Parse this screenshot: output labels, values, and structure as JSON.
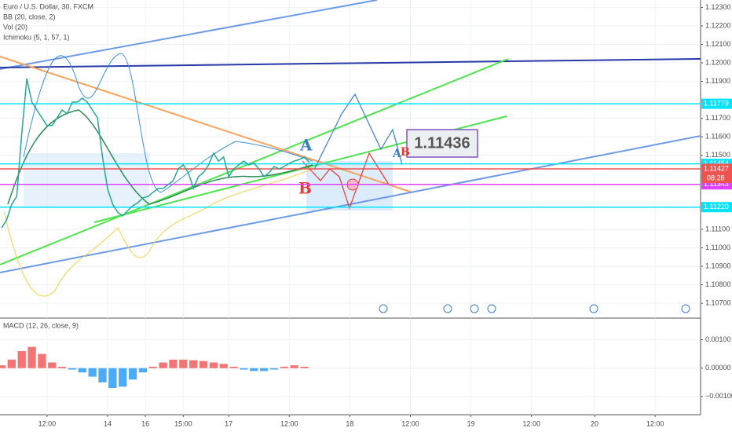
{
  "chart_data": {
    "type": "line",
    "title": "Euro / U.S. Dollar, 30, FXCM",
    "indicators": [
      "BB (20, close, 2)",
      "Vol (20)",
      "Ichimoku (5, 1, 57, 1)"
    ],
    "grid": true,
    "x": [
      0,
      2,
      4,
      6,
      8,
      10,
      12,
      14,
      16,
      18,
      20,
      22,
      24,
      26,
      28,
      30,
      32,
      34,
      36,
      38,
      40,
      42,
      44,
      46,
      48,
      50,
      52,
      54,
      56,
      58,
      60,
      62,
      64,
      66,
      68,
      70,
      72,
      74,
      76,
      78,
      80,
      82,
      84,
      86,
      88,
      90,
      92,
      94,
      96,
      98,
      100,
      102,
      104,
      106,
      108,
      110,
      112,
      114,
      116,
      118,
      120,
      122
    ],
    "series": [
      {
        "color": "#26a69a",
        "values": [
          1.11108,
          1.11151,
          1.11236,
          1.11278,
          1.11618,
          1.11915,
          1.11788,
          1.11745,
          1.11703,
          1.11661,
          1.11661,
          1.11703,
          1.11745,
          1.11724,
          1.11788,
          1.11788,
          1.11809,
          1.11788,
          1.11745,
          1.11703,
          1.11491,
          1.11321,
          1.11236,
          1.11193,
          1.11172,
          1.11202,
          1.11227,
          1.11244,
          1.1127,
          1.11278,
          1.113,
          1.11321,
          1.11321,
          1.11342,
          1.11363,
          1.11427,
          1.11448,
          1.11406,
          1.11321,
          1.11385,
          1.11406,
          1.11448,
          1.11512,
          1.11469,
          1.11491,
          1.11385,
          1.11427,
          1.11448,
          1.11469,
          1.11448,
          1.11457,
          1.11427,
          1.11385,
          1.11406,
          1.1144,
          1.11427,
          1.1144,
          1.11457,
          1.11469,
          1.11478,
          1.11491,
          1.11461
        ]
      }
    ],
    "xlim": [
      0,
      277
    ],
    "xticks": [
      {
        "value": 18,
        "label": "12:00"
      },
      {
        "value": 42,
        "label": "14"
      },
      {
        "value": 57,
        "label": "16"
      },
      {
        "value": 72,
        "label": "15:00"
      },
      {
        "value": 90,
        "label": "17"
      },
      {
        "value": 114,
        "label": "12:00"
      },
      {
        "value": 138,
        "label": "18"
      },
      {
        "value": 162,
        "label": "12:00"
      },
      {
        "value": 186,
        "label": "19"
      },
      {
        "value": 210,
        "label": "12:00"
      },
      {
        "value": 235,
        "label": "20"
      },
      {
        "value": 259,
        "label": "12:00"
      }
    ],
    "ylim": [
      1.1062,
      1.1234
    ],
    "yticks": [
      {
        "value": 1.123,
        "label": "1.12300"
      },
      {
        "value": 1.122,
        "label": "1.12200"
      },
      {
        "value": 1.121,
        "label": "1.12100"
      },
      {
        "value": 1.12,
        "label": "1.12000"
      },
      {
        "value": 1.119,
        "label": "1.11900"
      },
      {
        "value": 1.117,
        "label": "1.11700"
      },
      {
        "value": 1.116,
        "label": "1.11600"
      },
      {
        "value": 1.115,
        "label": "1.11500"
      },
      {
        "value": 1.111,
        "label": "1.11100"
      },
      {
        "value": 1.11,
        "label": "1.11000"
      },
      {
        "value": 1.109,
        "label": "1.10900"
      },
      {
        "value": 1.108,
        "label": "1.10800"
      },
      {
        "value": 1.107,
        "label": "1.10700"
      }
    ],
    "price_lines": [
      {
        "value": 1.11779,
        "label": "1.11779",
        "color": "#00e5ff"
      },
      {
        "value": 1.11454,
        "label": "1.11454",
        "color": "#00e5ff"
      },
      {
        "value": 1.11427,
        "label": "1.11427",
        "color": "#ef5350"
      },
      {
        "value": 1.11343,
        "label": "1.11343",
        "color": "#e040fb"
      },
      {
        "value": 1.1122,
        "label": "1.11220",
        "color": "#00e5ff"
      }
    ],
    "countdown": "08:28",
    "annotations": {
      "a_big": "A",
      "b_big": "B",
      "a_small": "A",
      "b_small": "B",
      "price_box": "1.11436"
    },
    "macd": {
      "title": "MACD (12, 26, close, 9)",
      "x": [
        0,
        4,
        8,
        12,
        16,
        20,
        24,
        28,
        32,
        36,
        40,
        44,
        48,
        52,
        56,
        60,
        64,
        68,
        72,
        76,
        80,
        84,
        88,
        92,
        96,
        100,
        104,
        108,
        112,
        116,
        120
      ],
      "values": [
        0.0001,
        0.0003,
        0.0006,
        0.00075,
        0.0005,
        0.0002,
        5e-05,
        -5e-05,
        -0.00015,
        -0.0003,
        -0.0005,
        -0.0007,
        -0.00065,
        -0.0004,
        -0.00015,
        5e-05,
        0.0002,
        0.0003,
        0.0003,
        0.00028,
        0.00025,
        0.0002,
        0.00015,
        5e-05,
        -5e-05,
        -0.0001,
        -0.0001,
        -5e-05,
        5e-05,
        0.0001,
        5e-05
      ],
      "up_color": "#ef5350",
      "down_color": "#2196f3",
      "ylim": [
        -0.00164,
        0.00168
      ],
      "yticks": [
        {
          "value": 0.001,
          "label": "0.00100"
        },
        {
          "value": 0,
          "label": "0.00000"
        },
        {
          "value": -0.001,
          "label": "−0.00100"
        }
      ]
    }
  }
}
